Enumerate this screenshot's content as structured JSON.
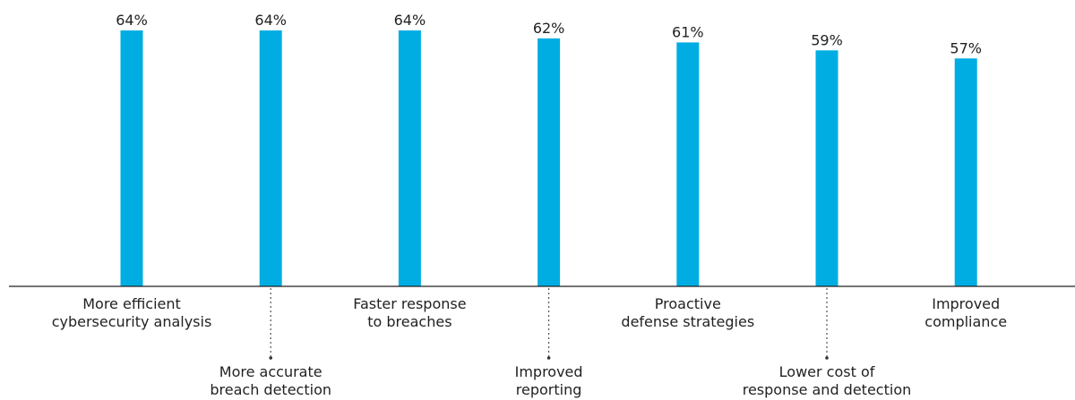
{
  "chart_data": {
    "type": "bar",
    "title": "",
    "xlabel": "",
    "ylabel": "",
    "ylim": [
      0,
      64
    ],
    "grid": false,
    "bar_color": "#00ADE2",
    "axis_color": "#222222",
    "categories": [
      [
        "More efficient",
        "cybersecurity analysis"
      ],
      [
        "More accurate",
        "breach detection"
      ],
      [
        "Faster response",
        "to breaches"
      ],
      [
        "Improved",
        "reporting"
      ],
      [
        "Proactive",
        "defense strategies"
      ],
      [
        "Lower cost of",
        "response and detection"
      ],
      [
        "Improved",
        "compliance"
      ]
    ],
    "values": [
      64,
      64,
      64,
      62,
      61,
      59,
      57
    ],
    "value_labels": [
      "64%",
      "64%",
      "64%",
      "62%",
      "61%",
      "59%",
      "57%"
    ]
  }
}
